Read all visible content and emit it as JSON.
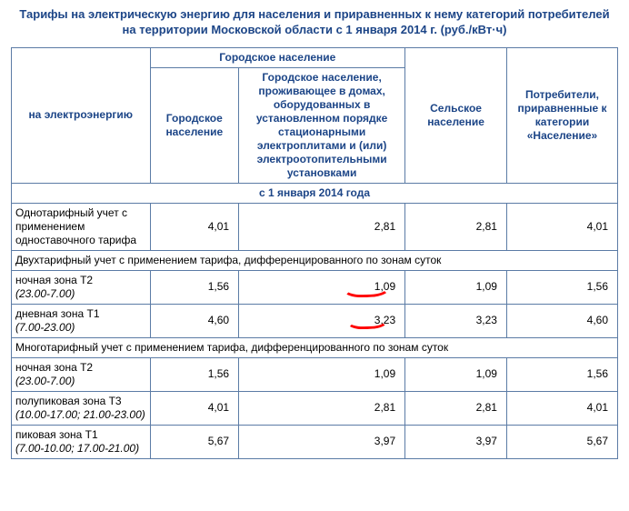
{
  "title_line1": "Тарифы на электрическую энергию для населения и приравненных к нему категорий потребителей",
  "title_line2": "на территории Московской области с 1 января 2014 г. (руб./кВт·ч)",
  "colors": {
    "header_text": "#1c4587",
    "border": "#5b7ba5",
    "background": "#ffffff",
    "annotation": "#ff0000"
  },
  "fonts": {
    "family": "Arial",
    "title_size_pt": 10,
    "body_size_pt": 9,
    "header_weight": "bold"
  },
  "header": {
    "row_label": "на электроэнергию",
    "urban_group": "Городское население",
    "urban_1": "Городское население",
    "urban_2": "Городское население, проживающее в домах, оборудованных в установленном порядке стационарными электроплитами и (или) электроотопительными установками",
    "rural": "Сельское население",
    "equiv": "Потребители, приравненные к категории «Население»"
  },
  "section_period": "с 1 января 2014 года",
  "rows": [
    {
      "type": "data",
      "label": "Однотарифный учет с применением одноставочного тарифа",
      "values": [
        "4,01",
        "2,81",
        "2,81",
        "4,01"
      ]
    },
    {
      "type": "subhead",
      "label": "Двухтарифный учет с применением тарифа, дифференцированного по зонам суток"
    },
    {
      "type": "data",
      "label_main": "ночная зона Т2",
      "label_time": "(23.00-7.00)",
      "values": [
        "1,56",
        "1,09",
        "1,09",
        "1,56"
      ],
      "annotate_col": 1
    },
    {
      "type": "data",
      "label_main": "дневная зона Т1",
      "label_time": "(7.00-23.00)",
      "values": [
        "4,60",
        "3,23",
        "3,23",
        "4,60"
      ],
      "annotate_col": 1
    },
    {
      "type": "subhead",
      "label": "Многотарифный учет с применением тарифа, дифференцированного по зонам суток"
    },
    {
      "type": "data",
      "label_main": "ночная зона Т2",
      "label_time": "(23.00-7.00)",
      "values": [
        "1,56",
        "1,09",
        "1,09",
        "1,56"
      ]
    },
    {
      "type": "data",
      "label_main": "полупиковая зона Т3",
      "label_time": "(10.00-17.00; 21.00-23.00)",
      "values": [
        "4,01",
        "2,81",
        "2,81",
        "4,01"
      ]
    },
    {
      "type": "data",
      "label_main": "пиковая зона Т1",
      "label_time": "(7.00-10.00; 17.00-21.00)",
      "values": [
        "5,67",
        "3,97",
        "3,97",
        "5,67"
      ]
    }
  ]
}
